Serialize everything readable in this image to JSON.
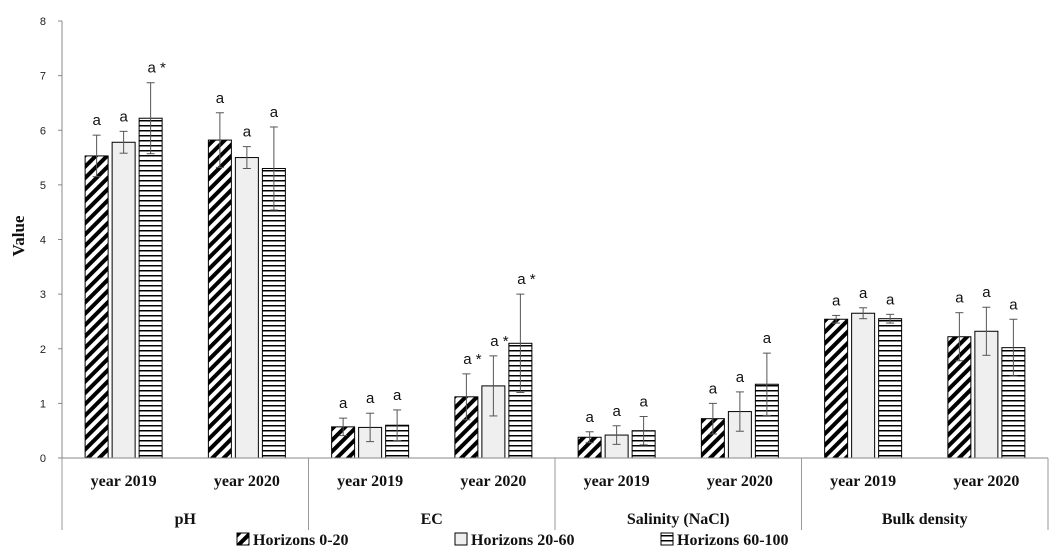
{
  "chart_data": {
    "type": "bar",
    "ylabel": "Value",
    "ylim": [
      0,
      8
    ],
    "yticks": [
      "0",
      "1",
      "2",
      "3",
      "4",
      "5",
      "6",
      "7",
      "8"
    ],
    "groups": [
      {
        "label": "pH",
        "subcategories": [
          "year 2019",
          "year 2020"
        ]
      },
      {
        "label": "EC",
        "subcategories": [
          "year 2019",
          "year 2020"
        ]
      },
      {
        "label": "Salinity (NaCl)",
        "subcategories": [
          "year 2019",
          "year 2020"
        ]
      },
      {
        "label": "Bulk density",
        "subcategories": [
          "year 2019",
          "year 2020"
        ]
      }
    ],
    "series": [
      {
        "name": "Horizons 0-20",
        "pattern": "diagonal",
        "values": [
          5.53,
          5.82,
          0.57,
          1.12,
          0.38,
          0.72,
          2.54,
          2.22
        ],
        "errors": [
          0.38,
          0.5,
          0.16,
          0.42,
          0.1,
          0.28,
          0.07,
          0.44
        ],
        "annotations": [
          "a",
          "a",
          "a",
          "a *",
          "a",
          "a",
          "a",
          "a"
        ]
      },
      {
        "name": "Horizons 20-60",
        "pattern": "plain",
        "values": [
          5.78,
          5.5,
          0.56,
          1.32,
          0.42,
          0.85,
          2.65,
          2.32
        ],
        "errors": [
          0.2,
          0.2,
          0.26,
          0.55,
          0.17,
          0.36,
          0.1,
          0.44
        ],
        "annotations": [
          "a",
          "a",
          "a",
          "a *",
          "a",
          "a",
          "a",
          "a"
        ]
      },
      {
        "name": "Horizons 60-100",
        "pattern": "horizontal",
        "values": [
          6.22,
          5.3,
          0.6,
          2.1,
          0.5,
          1.35,
          2.55,
          2.02
        ],
        "errors": [
          0.65,
          0.76,
          0.28,
          0.9,
          0.26,
          0.57,
          0.08,
          0.52
        ],
        "annotations": [
          "a *",
          "a",
          "a",
          "a *",
          "a",
          "a",
          "a",
          "a"
        ]
      }
    ],
    "grid": false,
    "legend_position": "bottom-center"
  }
}
